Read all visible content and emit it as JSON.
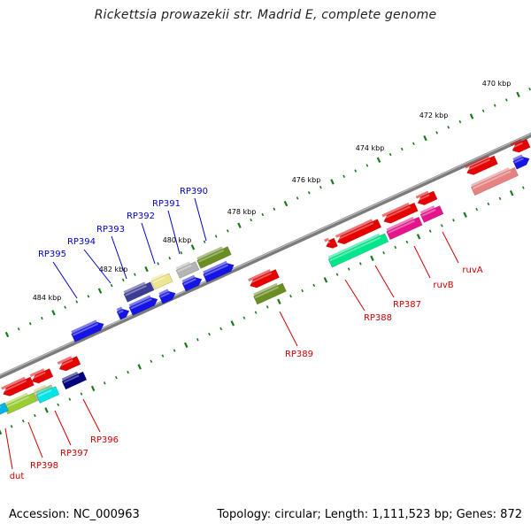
{
  "title": "Rickettsia prowazekii str. Madrid E, complete genome",
  "footer": {
    "accession": "Accession: NC_000963",
    "summary": "Topology: circular; Length: 1,111,523 bp; Genes: 872"
  },
  "colors": {
    "backbone": "#7a7a7a",
    "tick": "#1a7a1a",
    "forward_label": "#0000cc",
    "reverse_label": "#cc0000"
  },
  "ticks": [
    "470 kbp",
    "472 kbp",
    "474 kbp",
    "476 kbp",
    "478 kbp",
    "480 kbp",
    "482 kbp",
    "484 kbp"
  ],
  "forward_genes": [
    "RP390",
    "RP391",
    "RP392",
    "RP393",
    "RP394",
    "RP395"
  ],
  "reverse_genes": [
    "ruvA",
    "ruvB",
    "RP387",
    "RP388",
    "RP389",
    "RP396",
    "RP397",
    "RP398",
    "dut"
  ]
}
